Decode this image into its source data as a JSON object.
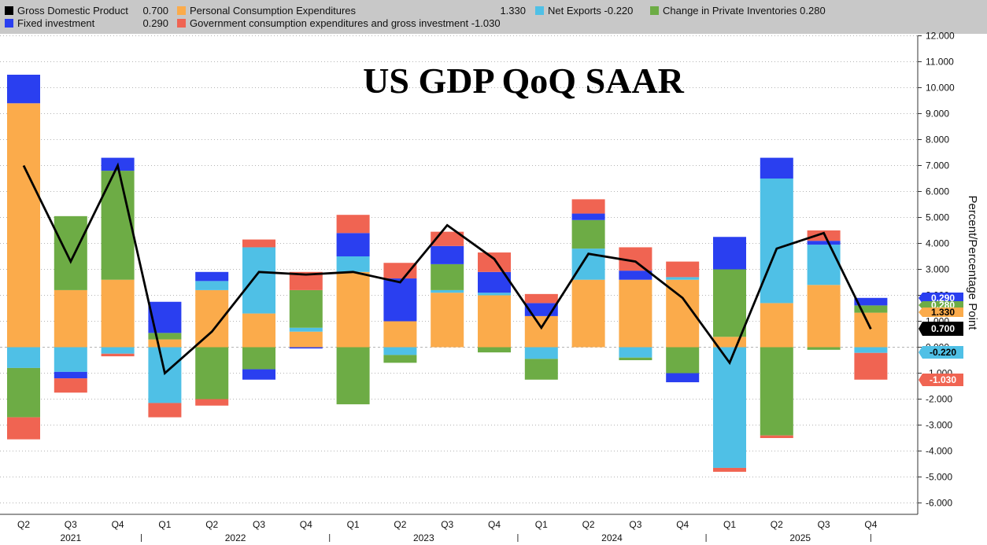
{
  "chart_data": {
    "type": "bar",
    "title": "US GDP QoQ SAAR",
    "ylabel": "Percent/Percentage Point",
    "ylim": [
      -6.5,
      12.2
    ],
    "yticks": [
      "12.000",
      "11.000",
      "10.000",
      "9.000",
      "8.000",
      "7.000",
      "6.000",
      "5.000",
      "4.000",
      "3.000",
      "2.000",
      "1.000",
      "0.000",
      "-1.000",
      "-2.000",
      "-3.000",
      "-4.000",
      "-5.000",
      "-6.000"
    ],
    "categories": [
      "Q2",
      "Q3",
      "Q4",
      "Q1",
      "Q2",
      "Q3",
      "Q4",
      "Q1",
      "Q2",
      "Q3",
      "Q4",
      "Q1",
      "Q2",
      "Q3",
      "Q4",
      "Q1",
      "Q2",
      "Q3",
      "Q4"
    ],
    "years": [
      "2021",
      "2022",
      "2023",
      "2024",
      "2025"
    ],
    "year_starts": [
      0,
      3,
      7,
      11,
      15
    ],
    "series": [
      {
        "name": "Personal Consumption Expenditures",
        "color": "#fbab4b",
        "legend_value": "1.330",
        "values": [
          9.4,
          2.2,
          2.6,
          0.3,
          2.2,
          1.3,
          0.6,
          2.9,
          1.0,
          2.1,
          2.0,
          1.2,
          2.6,
          2.6,
          2.6,
          0.4,
          1.7,
          2.4,
          1.33
        ]
      },
      {
        "name": "Net Exports",
        "color": "#4fc0e6",
        "legend_value": "-0.220",
        "values": [
          -0.8,
          -0.95,
          -0.25,
          -2.15,
          0.35,
          2.55,
          0.15,
          0.6,
          -0.3,
          0.1,
          0.1,
          -0.45,
          1.2,
          -0.4,
          0.1,
          -4.65,
          4.8,
          1.55,
          -0.22
        ]
      },
      {
        "name": "Change in Private Inventories",
        "color": "#6dac45",
        "legend_value": "0.280",
        "values": [
          -1.9,
          2.85,
          4.2,
          0.25,
          -2.0,
          -0.85,
          1.45,
          -2.2,
          -0.3,
          1.0,
          -0.2,
          -0.8,
          1.1,
          -0.1,
          -1.0,
          2.6,
          -3.4,
          -0.1,
          0.28
        ]
      },
      {
        "name": "Fixed investment",
        "color": "#2a3ff0",
        "legend_value": "0.290",
        "values": [
          1.1,
          -0.25,
          0.5,
          1.2,
          0.35,
          -0.4,
          -0.05,
          0.9,
          1.65,
          0.7,
          0.8,
          0.5,
          0.25,
          0.35,
          -0.35,
          1.25,
          0.8,
          0.15,
          0.29
        ]
      },
      {
        "name": "Government consumption expenditures and gross investment",
        "color": "#f06452",
        "legend_value": "-1.030",
        "values": [
          -0.85,
          -0.55,
          -0.1,
          -0.55,
          -0.25,
          0.3,
          0.7,
          0.7,
          0.6,
          0.55,
          0.75,
          0.35,
          0.55,
          0.9,
          0.6,
          -0.15,
          -0.1,
          0.4,
          -1.03
        ]
      }
    ],
    "line": {
      "name": "Gross Domestic Product",
      "color": "#000000",
      "legend_value": "0.700",
      "values": [
        7.0,
        3.3,
        7.0,
        -1.0,
        0.6,
        2.9,
        2.8,
        2.9,
        2.5,
        4.7,
        3.4,
        0.75,
        3.6,
        3.3,
        1.9,
        -0.6,
        3.8,
        4.4,
        0.7
      ]
    },
    "badges": [
      {
        "label": "0.290",
        "series": "Fixed investment",
        "bg": "#2a3ff0",
        "fg": "#ffffff"
      },
      {
        "label": "0.280",
        "series": "Change in Private Inventories",
        "bg": "#6dac45",
        "fg": "#ffffff"
      },
      {
        "label": "1.330",
        "series": "Personal Consumption Expenditures",
        "bg": "#fbab4b",
        "fg": "#000000"
      },
      {
        "label": "0.700",
        "series": "Gross Domestic Product",
        "bg": "#000000",
        "fg": "#ffffff"
      },
      {
        "label": "-0.220",
        "series": "Net Exports",
        "bg": "#4fc0e6",
        "fg": "#000000"
      },
      {
        "label": "-1.030",
        "series": "Government consumption expenditures and gross investment",
        "bg": "#f06452",
        "fg": "#ffffff"
      }
    ],
    "legend_placement": "top",
    "grid": true
  }
}
